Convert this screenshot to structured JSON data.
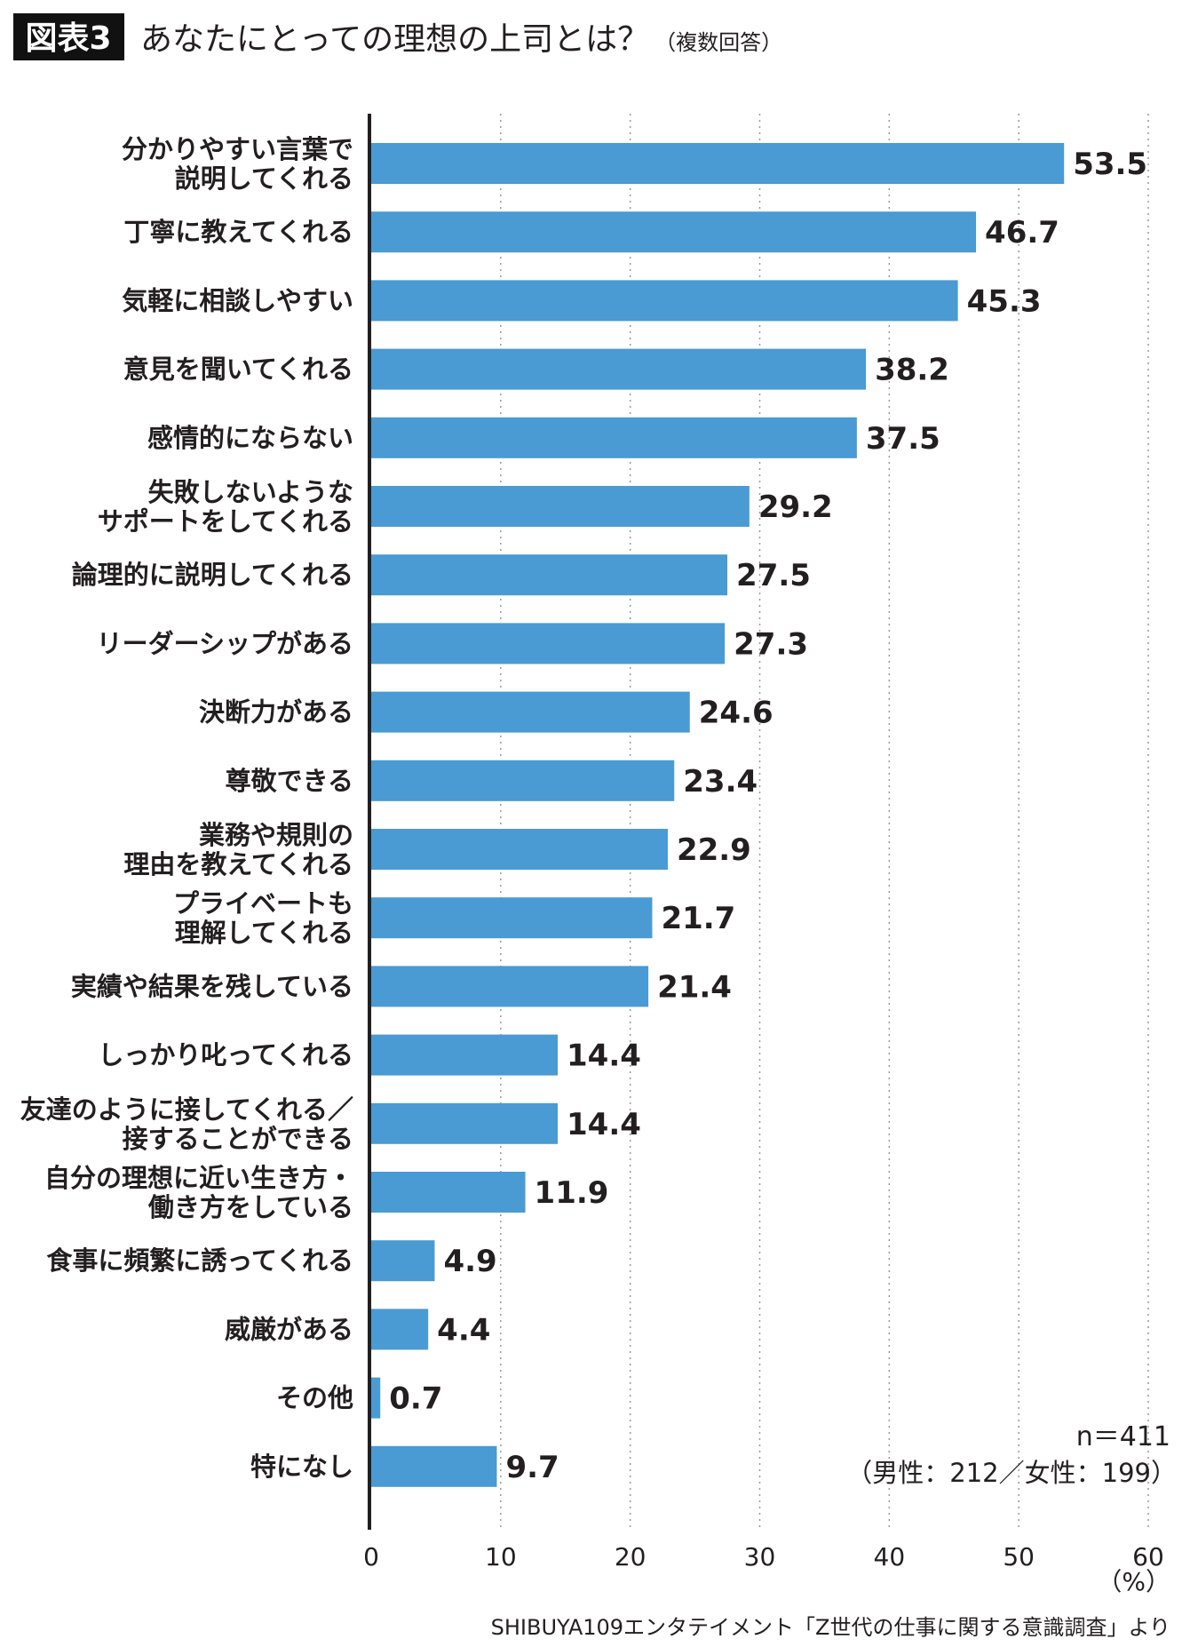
{
  "header": {
    "badge": "図表3",
    "title": "あなたにとっての理想の上司とは？",
    "note": "（複数回答）"
  },
  "sample": {
    "n": "n＝411",
    "breakdown": "（男性：212／女性：199）"
  },
  "source": "SHIBUYA109エンタテイメント「Z世代の仕事に関する意識調査」より",
  "colors": {
    "bar": "#4a9ad3",
    "axis": "#231f20",
    "grid": "#999999"
  },
  "chart_data": {
    "type": "bar",
    "orientation": "horizontal",
    "categories": [
      [
        "分かりやすい言葉で",
        "説明してくれる"
      ],
      [
        "丁寧に教えてくれる"
      ],
      [
        "気軽に相談しやすい"
      ],
      [
        "意見を聞いてくれる"
      ],
      [
        "感情的にならない"
      ],
      [
        "失敗しないような",
        "サポートをしてくれる"
      ],
      [
        "論理的に説明してくれる"
      ],
      [
        "リーダーシップがある"
      ],
      [
        "決断力がある"
      ],
      [
        "尊敬できる"
      ],
      [
        "業務や規則の",
        "理由を教えてくれる"
      ],
      [
        "プライベートも",
        "理解してくれる"
      ],
      [
        "実績や結果を残している"
      ],
      [
        "しっかり叱ってくれる"
      ],
      [
        "友達のように接してくれる／",
        "接することができる"
      ],
      [
        "自分の理想に近い生き方・",
        "働き方をしている"
      ],
      [
        "食事に頻繁に誘ってくれる"
      ],
      [
        "威厳がある"
      ],
      [
        "その他"
      ],
      [
        "特になし"
      ]
    ],
    "values": [
      53.5,
      46.7,
      45.3,
      38.2,
      37.5,
      29.2,
      27.5,
      27.3,
      24.6,
      23.4,
      22.9,
      21.7,
      21.4,
      14.4,
      14.4,
      11.9,
      4.9,
      4.4,
      0.7,
      9.7
    ],
    "value_labels": [
      "53.5",
      "46.7",
      "45.3",
      "38.2",
      "37.5",
      "29.2",
      "27.5",
      "27.3",
      "24.6",
      "23.4",
      "22.9",
      "21.7",
      "21.4",
      "14.4",
      "14.4",
      "11.9",
      "4.9",
      "4.4",
      "0.7",
      "9.7"
    ],
    "xlim": [
      0,
      60
    ],
    "xticks": [
      "0",
      "10",
      "20",
      "30",
      "40",
      "50",
      "60"
    ],
    "xunit": "（%）",
    "grid": "vertical dotted"
  }
}
